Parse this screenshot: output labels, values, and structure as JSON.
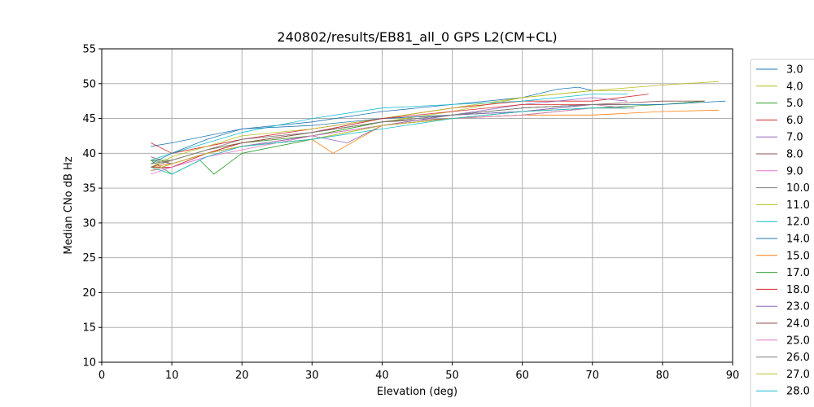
{
  "chart_data": {
    "type": "line",
    "title": "240802/results/EB81_all_0 GPS L2(CM+CL)",
    "xlabel": "Elevation (deg)",
    "ylabel": "Median CNo dB Hz",
    "xlim": [
      0,
      90
    ],
    "ylim": [
      10,
      55
    ],
    "xticks": [
      "0",
      "10",
      "20",
      "30",
      "40",
      "50",
      "60",
      "70",
      "80",
      "90"
    ],
    "yticks": [
      "10",
      "15",
      "20",
      "25",
      "30",
      "35",
      "40",
      "45",
      "50",
      "55"
    ],
    "grid": true,
    "legend_position": "right, outside plot",
    "series": [
      {
        "name": "3.0",
        "color": "#1f77b4",
        "points": [
          [
            7,
            41
          ],
          [
            10,
            41.5
          ],
          [
            15,
            42.5
          ],
          [
            20,
            43.5
          ],
          [
            30,
            44.5
          ],
          [
            40,
            46
          ],
          [
            50,
            47
          ],
          [
            60,
            48
          ],
          [
            65,
            49.2
          ],
          [
            68,
            49.5
          ],
          [
            70,
            49
          ]
        ]
      },
      {
        "name": "4.0",
        "color": "#bcbd22",
        "points": [
          [
            7,
            38.5
          ],
          [
            10,
            39
          ],
          [
            15,
            40.5
          ],
          [
            20,
            41.5
          ],
          [
            30,
            42.5
          ],
          [
            40,
            44.5
          ],
          [
            50,
            46
          ],
          [
            60,
            48
          ],
          [
            70,
            49
          ],
          [
            80,
            49.8
          ],
          [
            88,
            50.3
          ]
        ]
      },
      {
        "name": "5.0",
        "color": "#2ca02c",
        "points": [
          [
            7,
            39
          ],
          [
            10,
            37
          ],
          [
            14,
            39
          ],
          [
            16,
            37
          ],
          [
            20,
            40
          ],
          [
            30,
            42
          ],
          [
            40,
            44
          ],
          [
            50,
            45
          ],
          [
            60,
            45.5
          ],
          [
            70,
            46.5
          ],
          [
            80,
            47
          ],
          [
            86,
            47.5
          ]
        ]
      },
      {
        "name": "6.0",
        "color": "#d62728",
        "points": [
          [
            7,
            41.5
          ],
          [
            10,
            40
          ],
          [
            15,
            41
          ],
          [
            20,
            42
          ],
          [
            30,
            43.5
          ],
          [
            40,
            45
          ],
          [
            50,
            46.5
          ],
          [
            60,
            47.5
          ],
          [
            70,
            47.5
          ],
          [
            78,
            48.5
          ]
        ]
      },
      {
        "name": "7.0",
        "color": "#9467bd",
        "points": [
          [
            7,
            38
          ],
          [
            10,
            38
          ],
          [
            15,
            39.5
          ],
          [
            20,
            41
          ],
          [
            30,
            42.5
          ],
          [
            35,
            41.5
          ],
          [
            40,
            44
          ],
          [
            50,
            45.5
          ],
          [
            60,
            47
          ],
          [
            70,
            48
          ],
          [
            75,
            47.5
          ]
        ]
      },
      {
        "name": "8.0",
        "color": "#8c564b",
        "points": [
          [
            7,
            39.5
          ],
          [
            10,
            38.5
          ],
          [
            15,
            40
          ],
          [
            20,
            41.5
          ],
          [
            30,
            43
          ],
          [
            40,
            44.5
          ],
          [
            50,
            45
          ],
          [
            60,
            46
          ],
          [
            70,
            47
          ],
          [
            80,
            47.5
          ],
          [
            86,
            47.5
          ]
        ]
      },
      {
        "name": "9.0",
        "color": "#e377c2",
        "points": [
          [
            7,
            37.5
          ],
          [
            10,
            38
          ],
          [
            15,
            40
          ],
          [
            20,
            41
          ],
          [
            30,
            42.5
          ],
          [
            40,
            44
          ],
          [
            50,
            45
          ],
          [
            60,
            46
          ],
          [
            70,
            47
          ],
          [
            75,
            46.5
          ]
        ]
      },
      {
        "name": "10.0",
        "color": "#7f7f7f",
        "points": [
          [
            7,
            39
          ],
          [
            10,
            38.5
          ],
          [
            15,
            40
          ],
          [
            20,
            41.5
          ],
          [
            30,
            43
          ],
          [
            40,
            45
          ],
          [
            50,
            45.5
          ],
          [
            60,
            46
          ],
          [
            70,
            46.5
          ],
          [
            76,
            46.5
          ]
        ]
      },
      {
        "name": "11.0",
        "color": "#bcbd22",
        "points": [
          [
            7,
            38
          ],
          [
            10,
            39.5
          ],
          [
            15,
            41
          ],
          [
            20,
            42.5
          ],
          [
            30,
            43.5
          ],
          [
            40,
            45
          ],
          [
            50,
            46.5
          ],
          [
            60,
            48
          ],
          [
            70,
            49
          ],
          [
            76,
            49
          ]
        ]
      },
      {
        "name": "12.0",
        "color": "#17becf",
        "points": [
          [
            7,
            39
          ],
          [
            10,
            40
          ],
          [
            15,
            41.5
          ],
          [
            20,
            43
          ],
          [
            30,
            45
          ],
          [
            40,
            46.5
          ],
          [
            50,
            47
          ],
          [
            60,
            47.5
          ],
          [
            70,
            48.5
          ],
          [
            75,
            48.5
          ]
        ]
      },
      {
        "name": "14.0",
        "color": "#1f77b4",
        "points": [
          [
            7,
            38.5
          ],
          [
            10,
            40
          ],
          [
            15,
            42
          ],
          [
            20,
            43.5
          ],
          [
            30,
            44
          ],
          [
            40,
            45
          ],
          [
            50,
            45.5
          ],
          [
            60,
            46
          ],
          [
            70,
            47
          ],
          [
            80,
            47
          ],
          [
            89,
            47.5
          ]
        ]
      },
      {
        "name": "15.0",
        "color": "#ff7f0e",
        "points": [
          [
            7,
            38
          ],
          [
            10,
            38.5
          ],
          [
            15,
            40
          ],
          [
            20,
            41
          ],
          [
            30,
            42
          ],
          [
            33,
            40
          ],
          [
            40,
            44
          ],
          [
            50,
            45
          ],
          [
            60,
            45.5
          ],
          [
            70,
            45.5
          ],
          [
            80,
            46
          ],
          [
            88,
            46.2
          ]
        ]
      },
      {
        "name": "17.0",
        "color": "#2ca02c",
        "points": [
          [
            7,
            39
          ],
          [
            10,
            39
          ],
          [
            15,
            40.5
          ],
          [
            20,
            41.5
          ],
          [
            30,
            42.5
          ],
          [
            40,
            44.5
          ],
          [
            50,
            45.5
          ],
          [
            60,
            46.5
          ],
          [
            70,
            47
          ],
          [
            75,
            47
          ]
        ]
      },
      {
        "name": "18.0",
        "color": "#d62728",
        "points": [
          [
            7,
            38
          ],
          [
            10,
            38
          ],
          [
            15,
            40
          ],
          [
            20,
            41.5
          ],
          [
            30,
            43
          ],
          [
            40,
            45
          ],
          [
            50,
            46
          ],
          [
            60,
            47
          ],
          [
            70,
            47
          ],
          [
            75,
            47
          ]
        ]
      },
      {
        "name": "23.0",
        "color": "#9467bd",
        "points": [
          [
            7,
            37.5
          ],
          [
            10,
            38.5
          ],
          [
            15,
            40
          ],
          [
            20,
            41
          ],
          [
            30,
            42.5
          ],
          [
            40,
            44
          ],
          [
            50,
            45.5
          ],
          [
            60,
            46
          ],
          [
            70,
            47
          ],
          [
            75,
            47
          ]
        ]
      },
      {
        "name": "24.0",
        "color": "#8c564b",
        "points": [
          [
            7,
            38
          ],
          [
            10,
            39
          ],
          [
            15,
            40.5
          ],
          [
            20,
            41.5
          ],
          [
            30,
            43
          ],
          [
            40,
            44.5
          ],
          [
            50,
            45.5
          ],
          [
            60,
            46.5
          ],
          [
            70,
            47
          ],
          [
            75,
            47
          ]
        ]
      },
      {
        "name": "25.0",
        "color": "#e377c2",
        "points": [
          [
            7,
            37
          ],
          [
            10,
            38
          ],
          [
            15,
            39.5
          ],
          [
            20,
            40.5
          ],
          [
            30,
            42.5
          ],
          [
            40,
            44
          ],
          [
            50,
            45
          ],
          [
            60,
            45.5
          ],
          [
            70,
            46.5
          ],
          [
            75,
            46.5
          ]
        ]
      },
      {
        "name": "26.0",
        "color": "#7f7f7f",
        "points": [
          [
            7,
            38.5
          ],
          [
            10,
            39
          ],
          [
            15,
            40.5
          ],
          [
            20,
            42
          ],
          [
            30,
            43
          ],
          [
            40,
            44.5
          ],
          [
            50,
            45.5
          ],
          [
            60,
            46.5
          ],
          [
            70,
            47
          ],
          [
            75,
            47
          ]
        ]
      },
      {
        "name": "27.0",
        "color": "#bcbd22",
        "points": [
          [
            7,
            37.5
          ],
          [
            10,
            38.5
          ],
          [
            15,
            40
          ],
          [
            20,
            41
          ],
          [
            30,
            42
          ],
          [
            40,
            44
          ],
          [
            50,
            45
          ],
          [
            60,
            46
          ],
          [
            70,
            46.5
          ],
          [
            75,
            46.5
          ]
        ]
      },
      {
        "name": "28.0",
        "color": "#17becf",
        "points": [
          [
            7,
            38
          ],
          [
            10,
            37
          ],
          [
            15,
            39.5
          ],
          [
            20,
            41
          ],
          [
            30,
            42
          ],
          [
            40,
            43.5
          ],
          [
            50,
            45
          ],
          [
            60,
            46
          ],
          [
            70,
            46.5
          ],
          [
            75,
            46.5
          ]
        ]
      }
    ]
  }
}
